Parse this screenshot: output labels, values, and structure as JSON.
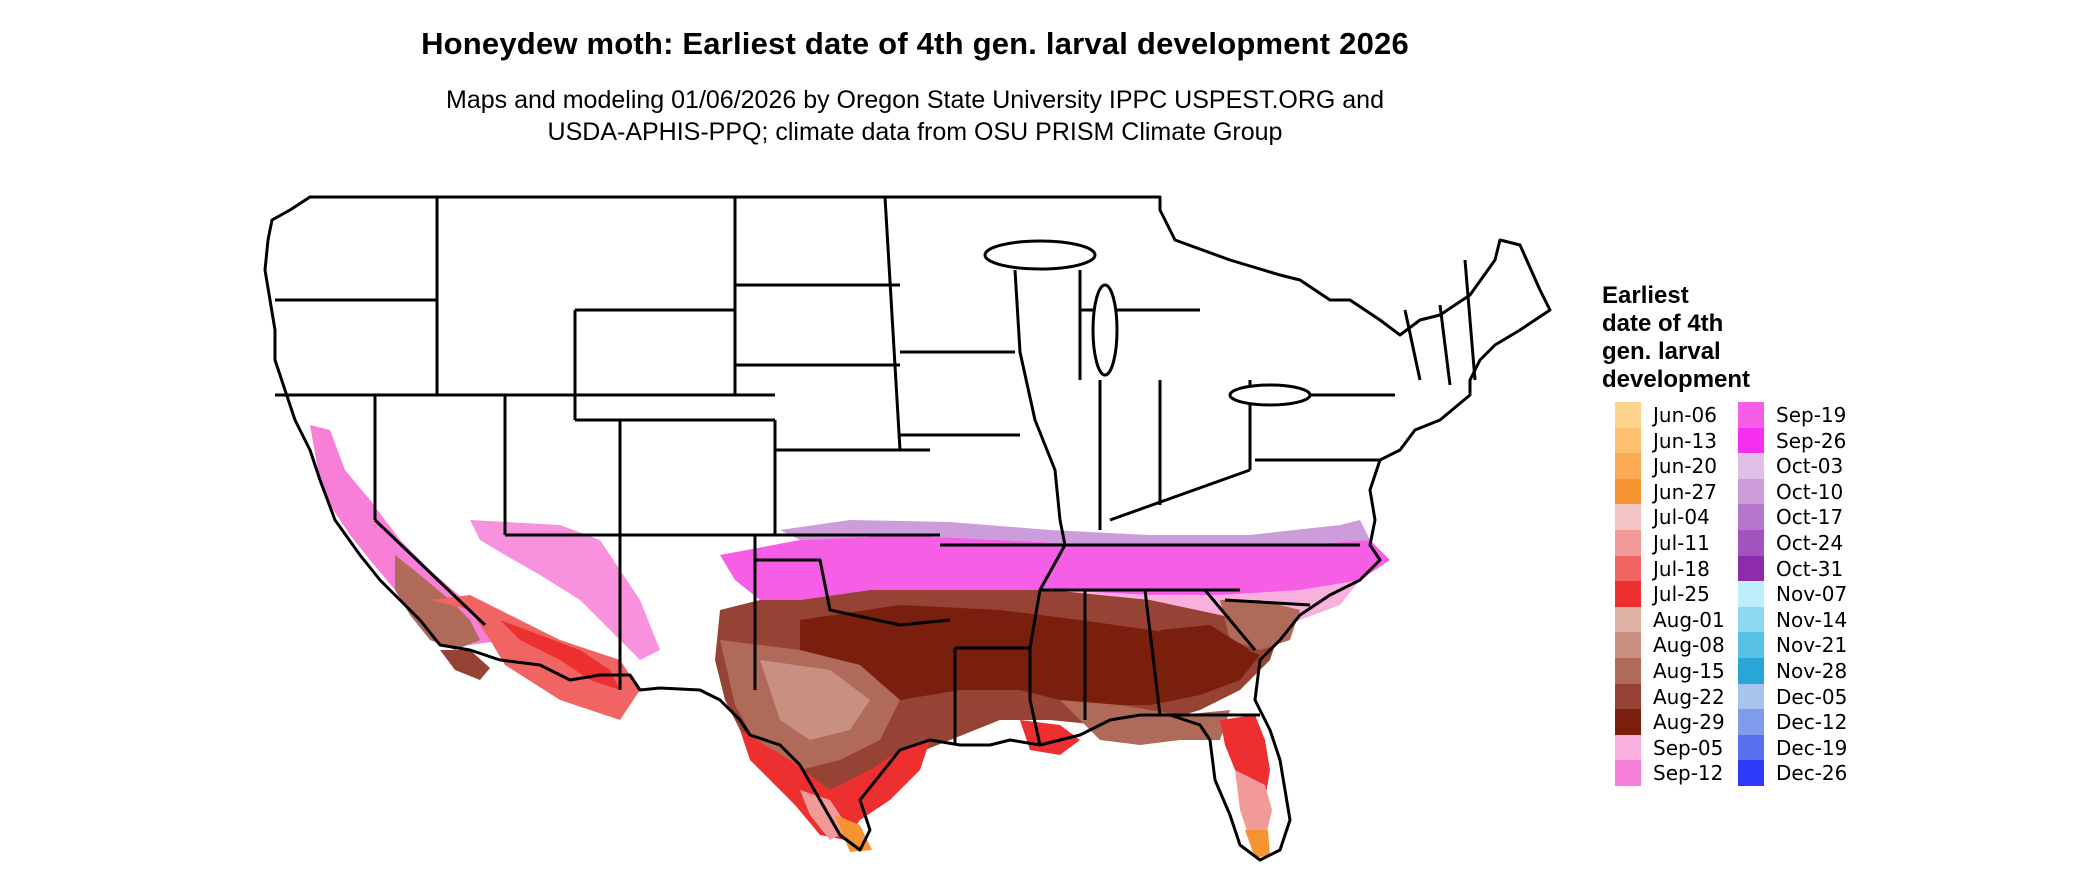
{
  "title": "Honeydew moth: Earliest date of 4th gen. larval development 2026",
  "subtitle_line1": "Maps and modeling 01/06/2026 by Oregon State University IPPC USPEST.ORG and",
  "subtitle_line2": "USDA-APHIS-PPQ; climate data from OSU PRISM Climate Group",
  "legend": {
    "title_lines": [
      "Earliest",
      "date of 4th",
      "gen. larval",
      "development"
    ],
    "col1": [
      {
        "label": "Jun-06",
        "color": "#FDD38C"
      },
      {
        "label": "Jun-13",
        "color": "#FCC070"
      },
      {
        "label": "Jun-20",
        "color": "#FAAA52"
      },
      {
        "label": "Jun-27",
        "color": "#F79432"
      },
      {
        "label": "Jul-04",
        "color": "#F4C6C6"
      },
      {
        "label": "Jul-11",
        "color": "#F29A9A"
      },
      {
        "label": "Jul-18",
        "color": "#F06464"
      },
      {
        "label": "Jul-25",
        "color": "#EE2F2F"
      },
      {
        "label": "Aug-01",
        "color": "#DDB2A5"
      },
      {
        "label": "Aug-08",
        "color": "#C98F80"
      },
      {
        "label": "Aug-15",
        "color": "#B06A5A"
      },
      {
        "label": "Aug-22",
        "color": "#964234"
      },
      {
        "label": "Aug-29",
        "color": "#7A1F0D"
      },
      {
        "label": "Sep-05",
        "color": "#F9B0DC"
      },
      {
        "label": "Sep-12",
        "color": "#F87FD8"
      }
    ],
    "col2": [
      {
        "label": "Sep-19",
        "color": "#F65EE6"
      },
      {
        "label": "Sep-26",
        "color": "#F52EF0"
      },
      {
        "label": "Oct-03",
        "color": "#E0C0E8"
      },
      {
        "label": "Oct-10",
        "color": "#CC9CDB"
      },
      {
        "label": "Oct-17",
        "color": "#B577CC"
      },
      {
        "label": "Oct-24",
        "color": "#A253BC"
      },
      {
        "label": "Oct-31",
        "color": "#8B2CAC"
      },
      {
        "label": "Nov-07",
        "color": "#BDEEFC"
      },
      {
        "label": "Nov-14",
        "color": "#8ED8F2"
      },
      {
        "label": "Nov-21",
        "color": "#58C1E6"
      },
      {
        "label": "Nov-28",
        "color": "#28A6D8"
      },
      {
        "label": "Dec-05",
        "color": "#A8C4EE"
      },
      {
        "label": "Dec-12",
        "color": "#7F9CEC"
      },
      {
        "label": "Dec-19",
        "color": "#5670EE"
      },
      {
        "label": "Dec-26",
        "color": "#2D3AF7"
      }
    ]
  }
}
